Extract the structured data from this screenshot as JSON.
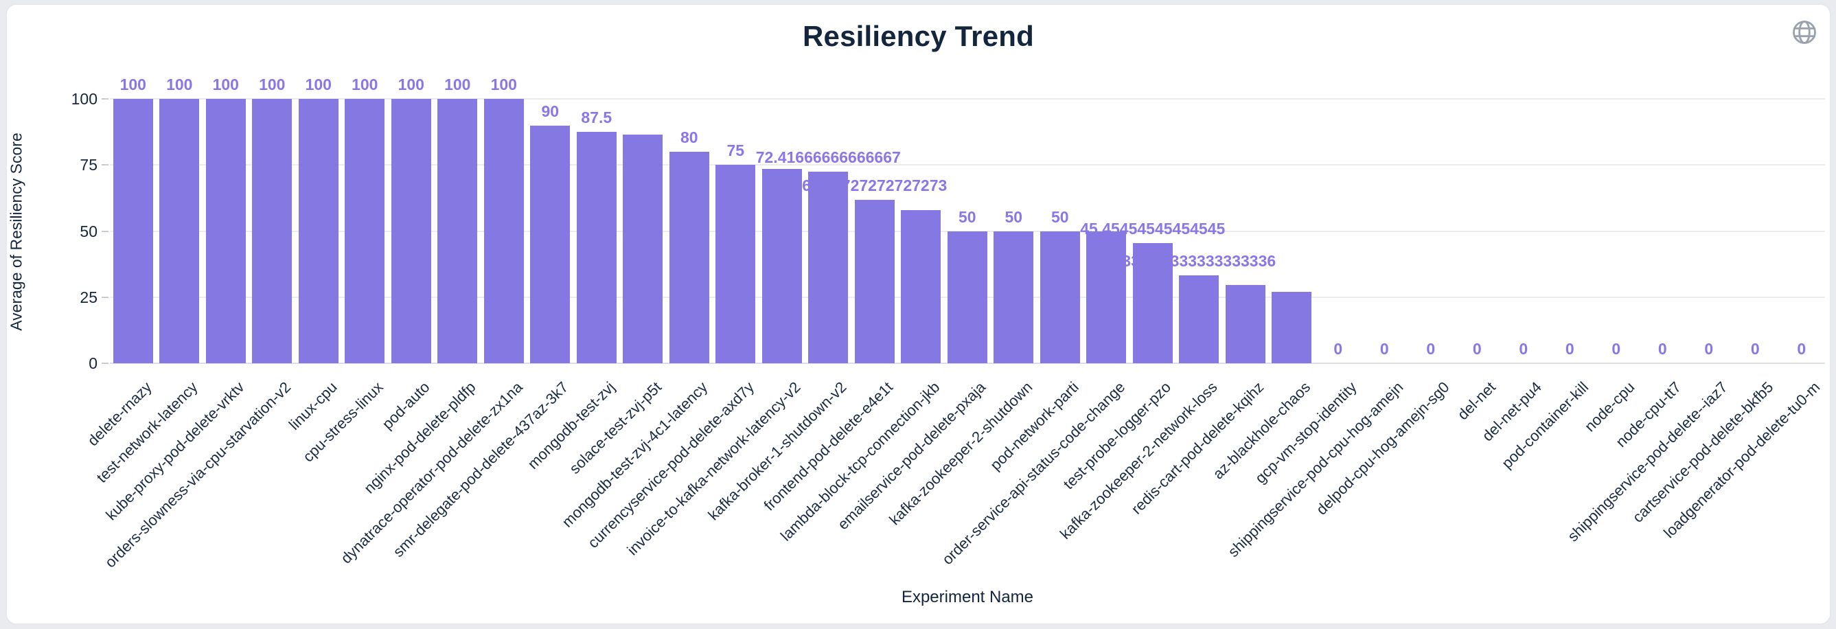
{
  "page": {
    "title": "Resiliency Trend"
  },
  "header": {
    "globe_icon": "globe-icon"
  },
  "colors": {
    "bar": "#8678E3",
    "value_label": "#8B76E9",
    "title_text": "#13263E",
    "axis_text": "#15273F",
    "x_label_text": "#1B2C45",
    "gridline": "#ECECEF",
    "axis_line": "#DCDEE2",
    "icon_gray": "#9AA2AD",
    "card_background": "#FFFFFF",
    "page_background": "#E9EBEE"
  },
  "chart_data": {
    "type": "bar",
    "title": "Resiliency Trend",
    "xlabel": "Experiment Name",
    "ylabel": "Average of Resiliency Score",
    "ylim": [
      0,
      100
    ],
    "y_ticks": [
      0,
      25,
      50,
      75,
      100
    ],
    "grid": true,
    "legend": "none",
    "categories": [
      "delete-rnazy",
      "test-network-latency",
      "kube-proxy-pod-delete-vrktv",
      "orders-slowness-via-cpu-starvation-v2",
      "linux-cpu",
      "cpu-stress-linux",
      "pod-auto",
      "nginx-pod-delete-pldfp",
      "dynatrace-operator-pod-delete-zx1na",
      "smr-delegate-pod-delete-437az-3k7",
      "mongodb-test-zvj",
      "solace-test-zvj-p5t",
      "mongodb-test-zvj-4c1-latency",
      "currencyservice-pod-delete-axd7y",
      "invoice-to-kafka-network-latency-v2",
      "kafka-broker-1-shutdown-v2",
      "frontend-pod-delete-e4e1t",
      "lambda-block-tcp-connection-jkb",
      "emailservice-pod-delete-pxaja",
      "kafka-zookeeper-2-shutdown",
      "pod-network-parti",
      "order-service-api-status-code-change",
      "test-probe-logger-pzo",
      "kafka-zookeeper-2-network-loss",
      "redis-cart-pod-delete-kqihz",
      "az-blackhole-chaos",
      "gcp-vm-stop-identity",
      "shippingservice-pod-cpu-hog-amejn",
      "delpod-cpu-hog-amejn-sg0",
      "del-net",
      "del-net-pu4",
      "pod-container-kill",
      "node-cpu",
      "node-cpu-tt7",
      "shippingservice-pod-delete--iaz7",
      "cartservice-pod-delete-bkfb5",
      "loadgenerator-pod-delete-tu0-m"
    ],
    "values": [
      100,
      100,
      100,
      100,
      100,
      100,
      100,
      100,
      100,
      90,
      87.5,
      86.5,
      80,
      75,
      73.4,
      72.41666666666667,
      61.72727272727273,
      58,
      50,
      50,
      50,
      50,
      45.45454545454545,
      33.333333333333336,
      29.5,
      27,
      0,
      0,
      0,
      0,
      0,
      0,
      0,
      0,
      0,
      0,
      0
    ],
    "value_labels": [
      "100",
      "100",
      "100",
      "100",
      "100",
      "100",
      "100",
      "100",
      "100",
      "90",
      "87.5",
      "",
      "80",
      "75",
      "",
      "72.41666666666667",
      "61.72727272727273",
      "",
      "50",
      "50",
      "50",
      "",
      "45.45454545454545",
      "33.333333333333336",
      "",
      "",
      "0",
      "0",
      "0",
      "0",
      "0",
      "0",
      "0",
      "0",
      "0",
      "0",
      "0"
    ]
  }
}
